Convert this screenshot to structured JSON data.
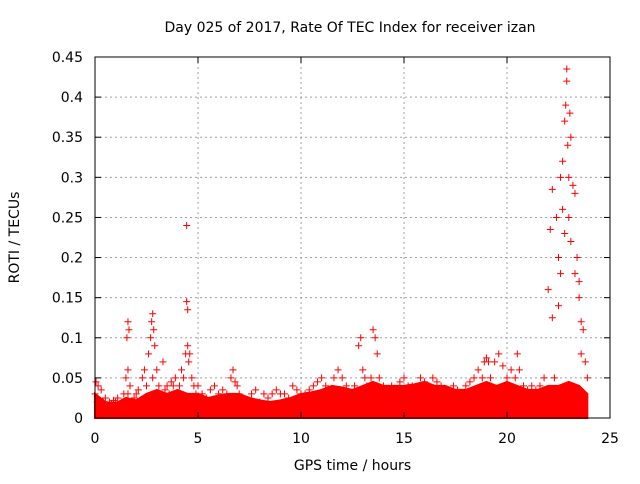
{
  "chart_data": {
    "type": "scatter",
    "title": "Day 025 of 2017, Rate Of TEC Index for receiver izan",
    "xlabel": "GPS time / hours",
    "ylabel": "ROTI / TECUs",
    "xlim": [
      0,
      25
    ],
    "ylim": [
      0,
      0.45
    ],
    "xticks": [
      "0",
      "5",
      "10",
      "15",
      "20",
      "25"
    ],
    "yticks": [
      "0",
      "0.05",
      "0.1",
      "0.15",
      "0.2",
      "0.25",
      "0.3",
      "0.35",
      "0.4",
      "0.45"
    ],
    "grid": true,
    "marker": "+",
    "color": "#ff0000",
    "x": [
      0.0,
      0.05,
      0.1,
      0.15,
      0.2,
      0.3,
      0.4,
      0.5,
      0.6,
      0.7,
      0.8,
      0.9,
      1.0,
      1.1,
      1.2,
      1.3,
      1.4,
      1.5,
      1.55,
      1.6,
      1.6,
      1.6,
      1.65,
      1.7,
      1.8,
      1.9,
      2.0,
      2.1,
      2.2,
      2.3,
      2.4,
      2.5,
      2.6,
      2.7,
      2.75,
      2.8,
      2.8,
      2.85,
      2.9,
      3.0,
      3.1,
      3.2,
      3.3,
      3.4,
      3.5,
      3.6,
      3.7,
      3.8,
      3.9,
      4.0,
      4.1,
      4.2,
      4.3,
      4.4,
      4.45,
      4.45,
      4.5,
      4.5,
      4.55,
      4.6,
      4.7,
      4.8,
      4.9,
      5.0,
      5.2,
      5.4,
      5.6,
      5.8,
      6.0,
      6.2,
      6.4,
      6.6,
      6.7,
      6.8,
      6.9,
      7.0,
      7.2,
      7.4,
      7.6,
      7.8,
      8.0,
      8.2,
      8.4,
      8.6,
      8.8,
      9.0,
      9.2,
      9.4,
      9.6,
      9.8,
      10.0,
      10.2,
      10.4,
      10.6,
      10.8,
      11.0,
      11.2,
      11.4,
      11.6,
      11.8,
      12.0,
      12.2,
      12.4,
      12.6,
      12.8,
      12.9,
      13.0,
      13.1,
      13.2,
      13.4,
      13.5,
      13.6,
      13.7,
      13.8,
      14.0,
      14.2,
      14.4,
      14.6,
      14.8,
      15.0,
      15.2,
      15.4,
      15.6,
      15.8,
      16.0,
      16.2,
      16.4,
      16.6,
      16.8,
      17.0,
      17.2,
      17.4,
      17.6,
      17.8,
      18.0,
      18.2,
      18.4,
      18.6,
      18.8,
      18.9,
      19.0,
      19.1,
      19.2,
      19.4,
      19.6,
      19.8,
      20.0,
      20.2,
      20.4,
      20.5,
      20.6,
      20.8,
      21.0,
      21.2,
      21.4,
      21.6,
      21.8,
      22.0,
      22.1,
      22.2,
      22.2,
      22.3,
      22.4,
      22.5,
      22.5,
      22.6,
      22.6,
      22.7,
      22.7,
      22.8,
      22.8,
      22.85,
      22.9,
      22.9,
      22.95,
      23.0,
      23.0,
      23.05,
      23.1,
      23.1,
      23.2,
      23.3,
      23.3,
      23.4,
      23.5,
      23.5,
      23.6,
      23.6,
      23.7,
      23.8,
      23.9
    ],
    "y": [
      0.03,
      0.045,
      0.02,
      0.04,
      0.015,
      0.035,
      0.02,
      0.025,
      0.015,
      0.02,
      0.018,
      0.022,
      0.02,
      0.025,
      0.015,
      0.02,
      0.03,
      0.05,
      0.1,
      0.12,
      0.06,
      0.03,
      0.11,
      0.04,
      0.02,
      0.025,
      0.03,
      0.035,
      0.02,
      0.05,
      0.06,
      0.04,
      0.08,
      0.1,
      0.12,
      0.13,
      0.05,
      0.11,
      0.09,
      0.06,
      0.04,
      0.03,
      0.07,
      0.035,
      0.04,
      0.03,
      0.045,
      0.04,
      0.05,
      0.03,
      0.04,
      0.06,
      0.05,
      0.08,
      0.24,
      0.145,
      0.09,
      0.135,
      0.07,
      0.08,
      0.05,
      0.04,
      0.03,
      0.04,
      0.03,
      0.025,
      0.035,
      0.04,
      0.03,
      0.035,
      0.03,
      0.05,
      0.06,
      0.045,
      0.04,
      0.03,
      0.025,
      0.02,
      0.03,
      0.035,
      0.02,
      0.03,
      0.025,
      0.03,
      0.035,
      0.03,
      0.03,
      0.025,
      0.04,
      0.035,
      0.03,
      0.03,
      0.035,
      0.04,
      0.045,
      0.05,
      0.04,
      0.035,
      0.05,
      0.06,
      0.05,
      0.04,
      0.03,
      0.04,
      0.09,
      0.1,
      0.06,
      0.05,
      0.04,
      0.05,
      0.11,
      0.1,
      0.08,
      0.05,
      0.04,
      0.03,
      0.04,
      0.035,
      0.045,
      0.05,
      0.04,
      0.04,
      0.035,
      0.05,
      0.045,
      0.04,
      0.05,
      0.045,
      0.04,
      0.035,
      0.03,
      0.04,
      0.035,
      0.03,
      0.04,
      0.045,
      0.05,
      0.06,
      0.05,
      0.07,
      0.075,
      0.07,
      0.05,
      0.07,
      0.08,
      0.065,
      0.05,
      0.06,
      0.05,
      0.08,
      0.06,
      0.04,
      0.035,
      0.04,
      0.035,
      0.04,
      0.05,
      0.16,
      0.235,
      0.125,
      0.285,
      0.05,
      0.25,
      0.2,
      0.14,
      0.3,
      0.18,
      0.32,
      0.26,
      0.37,
      0.23,
      0.39,
      0.435,
      0.42,
      0.34,
      0.25,
      0.3,
      0.38,
      0.22,
      0.35,
      0.29,
      0.28,
      0.18,
      0.2,
      0.15,
      0.17,
      0.12,
      0.08,
      0.11,
      0.07,
      0.05
    ],
    "background_band": {
      "x": [
        0,
        0.5,
        1,
        1.5,
        2,
        2.5,
        3,
        3.5,
        4,
        4.5,
        5,
        5.5,
        6,
        6.5,
        7,
        7.5,
        8,
        8.5,
        9,
        9.5,
        10,
        10.5,
        11,
        11.5,
        12,
        12.5,
        13,
        13.5,
        14,
        14.5,
        15,
        15.5,
        16,
        16.5,
        17,
        17.5,
        18,
        18.5,
        19,
        19.5,
        20,
        20.5,
        21,
        21.5,
        22,
        22.5,
        23,
        23.5,
        23.9
      ],
      "y": [
        0.03,
        0.02,
        0.018,
        0.025,
        0.022,
        0.03,
        0.035,
        0.03,
        0.035,
        0.03,
        0.03,
        0.025,
        0.028,
        0.03,
        0.03,
        0.025,
        0.022,
        0.02,
        0.022,
        0.025,
        0.03,
        0.032,
        0.035,
        0.04,
        0.038,
        0.035,
        0.04,
        0.045,
        0.04,
        0.04,
        0.04,
        0.042,
        0.045,
        0.04,
        0.04,
        0.035,
        0.035,
        0.04,
        0.045,
        0.04,
        0.045,
        0.04,
        0.035,
        0.035,
        0.04,
        0.04,
        0.045,
        0.04,
        0.03
      ]
    }
  }
}
